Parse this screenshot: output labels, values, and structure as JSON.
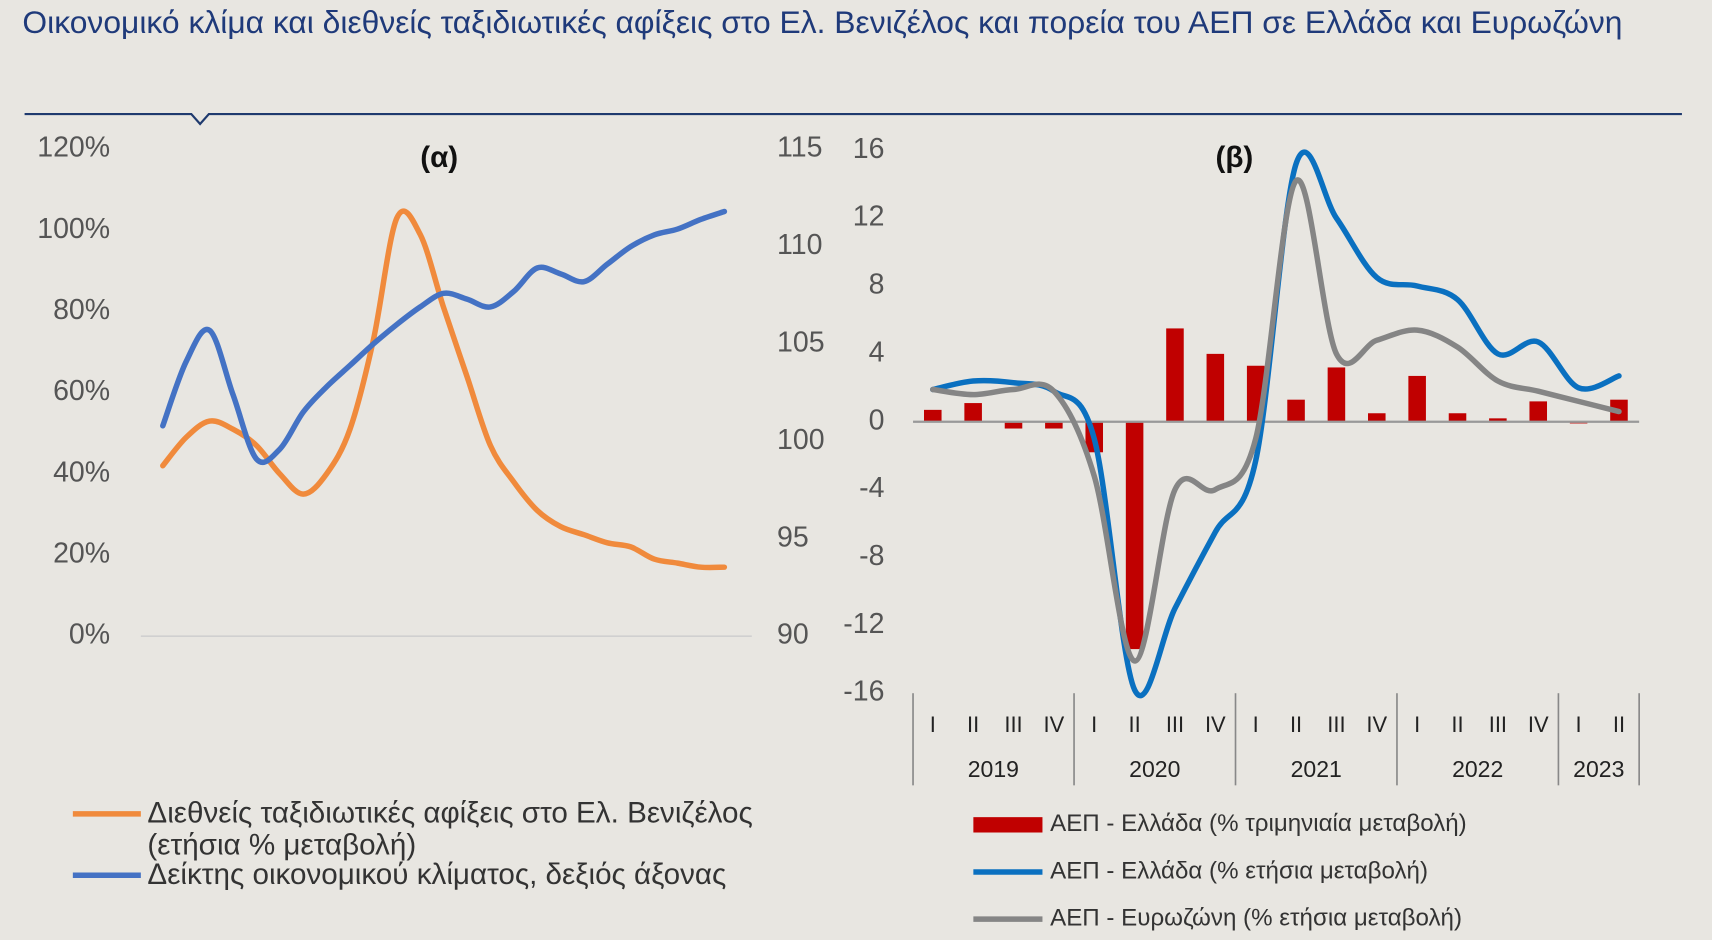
{
  "title": "Οικονομικό κλίμα και διεθνείς ταξιδιωτικές αφίξεις στο Ελ. Βενιζέλος και πορεία του ΑΕΠ σε Ελλάδα και Ευρωζώνη",
  "chart_data": [
    {
      "type": "line",
      "title": "(α)",
      "categories": [
        null,
        null,
        null,
        null,
        null,
        null,
        null,
        null,
        null,
        null,
        null,
        null,
        null,
        null,
        null,
        null,
        null,
        null,
        null,
        null,
        null,
        null,
        null,
        null,
        null
      ],
      "series": [
        {
          "name": "Διεθνείς ταξιδιωτικές αφίξεις στο Ελ. Βενιζέλος (ετήσια % μεταβολή)",
          "color": "#f08a3c",
          "axis": "y",
          "values": [
            42,
            49,
            53,
            51,
            47,
            40,
            35,
            40,
            51,
            73,
            103,
            99,
            81,
            64,
            47,
            38,
            31,
            27,
            25,
            23,
            22,
            19,
            18,
            17,
            17
          ]
        },
        {
          "name": "Δείκτης οικονομικού κλίματος, δεξιός άξονας",
          "color": "#4472c4",
          "axis": "y2",
          "values": [
            100.8,
            104.1,
            105.7,
            102.4,
            99.1,
            99.6,
            101.5,
            102.8,
            103.9,
            105.0,
            106.0,
            106.9,
            107.6,
            107.3,
            106.9,
            107.7,
            108.9,
            108.6,
            108.2,
            109.1,
            110.0,
            110.6,
            110.9,
            111.4,
            111.8
          ]
        }
      ],
      "ylim": [
        0,
        120
      ],
      "yticks": [
        {
          "value": 0,
          "label": "0%"
        },
        {
          "value": 20,
          "label": "20%"
        },
        {
          "value": 40,
          "label": "40%"
        },
        {
          "value": 60,
          "label": "60%"
        },
        {
          "value": 80,
          "label": "80%"
        },
        {
          "value": 100,
          "label": "100%"
        },
        {
          "value": 120,
          "label": "120%"
        }
      ],
      "y2lim": [
        90,
        115
      ],
      "y2ticks": [
        90,
        95,
        100,
        105,
        110,
        115
      ]
    },
    {
      "type": "combo",
      "title": "(β)",
      "categories": [
        "I",
        "II",
        "III",
        "IV",
        "I",
        "II",
        "III",
        "IV",
        "I",
        "II",
        "III",
        "IV",
        "I",
        "II",
        "III",
        "IV",
        "I",
        "II"
      ],
      "groups": [
        {
          "label": "2019",
          "size": 4
        },
        {
          "label": "2020",
          "size": 4
        },
        {
          "label": "2021",
          "size": 4
        },
        {
          "label": "2022",
          "size": 4
        },
        {
          "label": "2023",
          "size": 2
        }
      ],
      "series": [
        {
          "name": "ΑΕΠ - Ελλάδα (% τριμηνιαία μεταβολή)",
          "type": "bar",
          "color": "#c00000",
          "values": [
            0.7,
            1.1,
            -0.4,
            -0.4,
            -1.8,
            -13.4,
            5.5,
            4.0,
            3.3,
            1.3,
            3.2,
            0.5,
            2.7,
            0.5,
            0.2,
            1.2,
            -0.1,
            1.3
          ]
        },
        {
          "name": "ΑΕΠ - Ελλάδα (% ετήσια μεταβολή)",
          "type": "line",
          "color": "#0a70c0",
          "values": [
            1.9,
            2.4,
            2.3,
            1.8,
            -1.0,
            -15.8,
            -11.0,
            -6.5,
            -2.3,
            15.2,
            12.0,
            8.5,
            8.0,
            7.2,
            4.0,
            4.7,
            2.0,
            2.7
          ]
        },
        {
          "name": "ΑΕΠ - Ευρωζώνη (% ετήσια μεταβολή)",
          "type": "line",
          "color": "#858585",
          "values": [
            1.9,
            1.6,
            1.9,
            1.8,
            -3.2,
            -14.1,
            -4.0,
            -4.0,
            -1.0,
            14.2,
            4.0,
            4.8,
            5.4,
            4.4,
            2.4,
            1.8,
            1.2,
            0.6
          ]
        }
      ],
      "ylim": [
        -16,
        16
      ],
      "yticks": [
        -16,
        -12,
        -8,
        -4,
        0,
        4,
        8,
        12,
        16
      ]
    }
  ]
}
